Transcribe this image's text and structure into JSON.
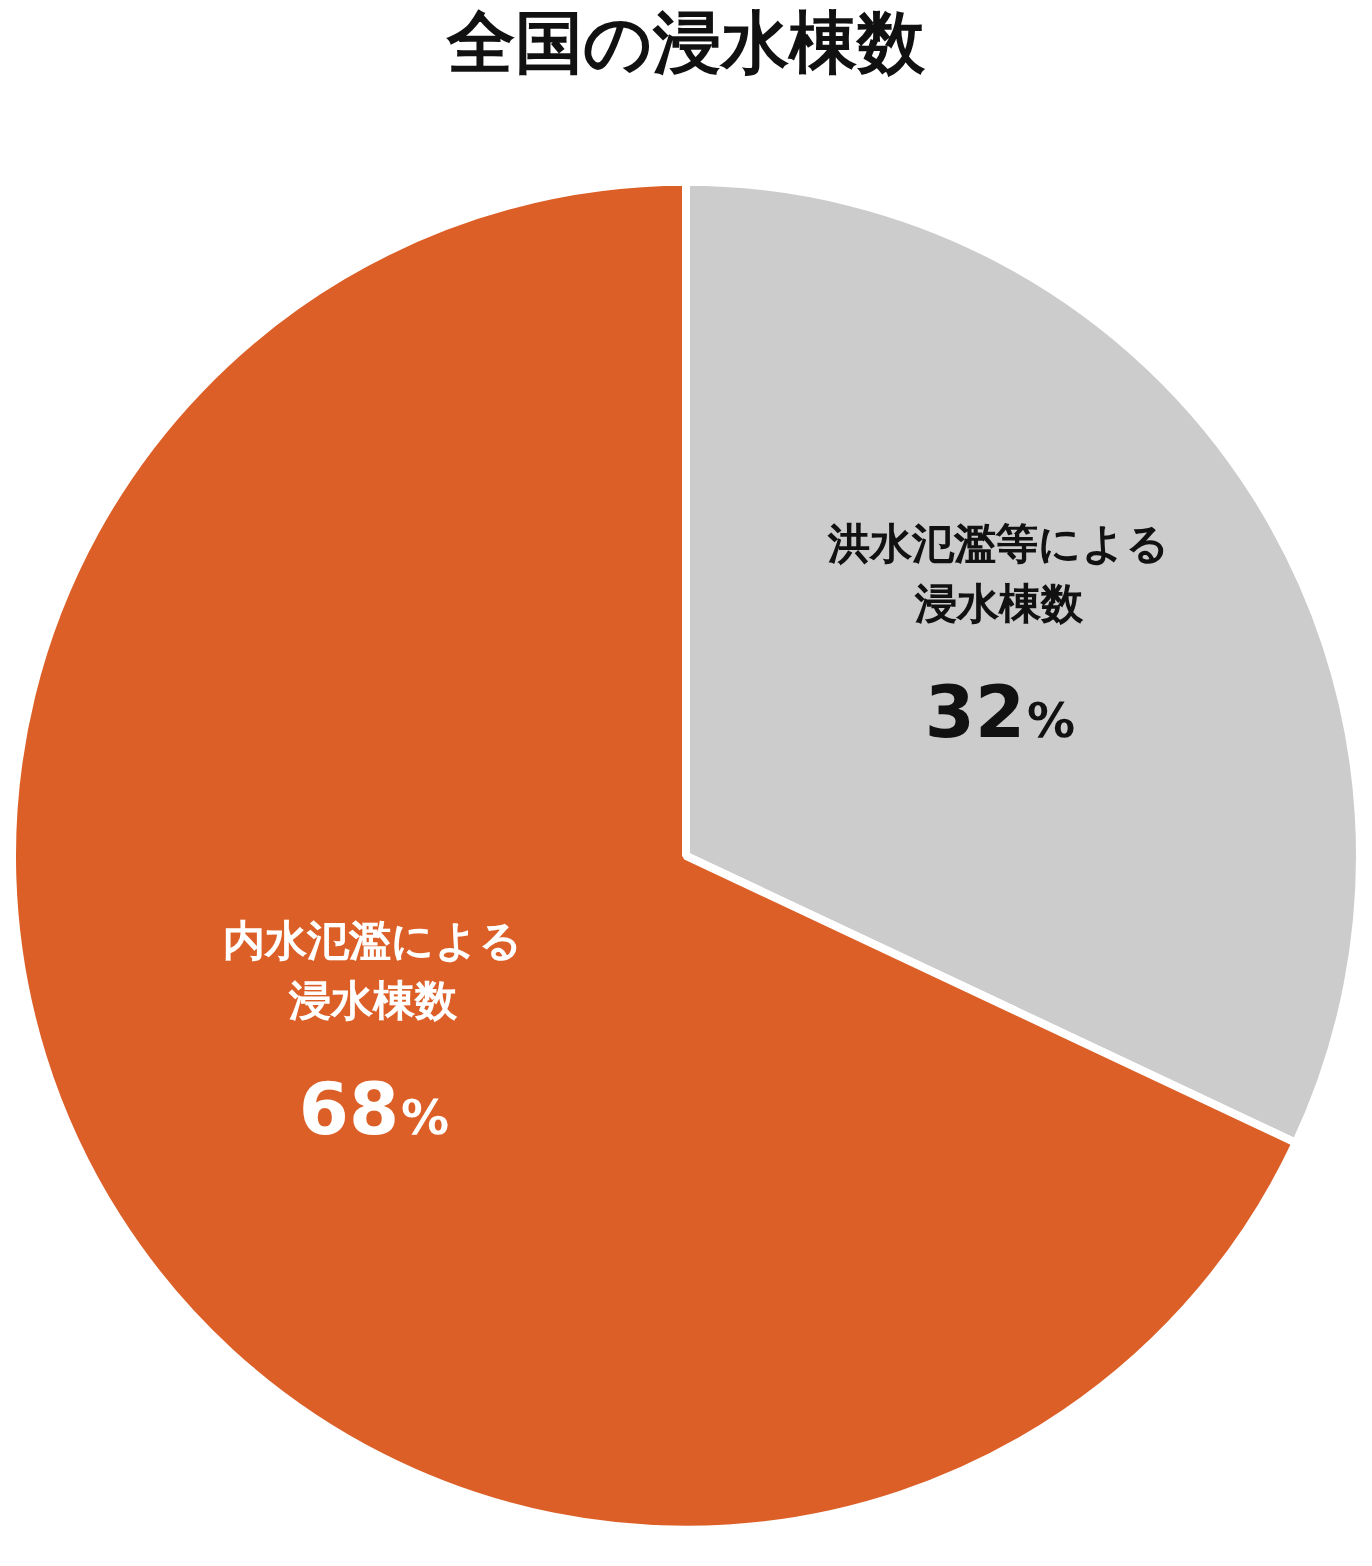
{
  "chart_data": {
    "type": "pie",
    "title": "全国の浸水棟数",
    "categories": [
      "洪水氾濫等による浸水棟数",
      "内水氾濫による浸水棟数"
    ],
    "values": [
      32,
      68
    ],
    "value_labels": [
      "32%",
      "68%"
    ],
    "colors": [
      "#cccccc",
      "#dd5f28"
    ],
    "data_labels": true,
    "legend": false
  }
}
